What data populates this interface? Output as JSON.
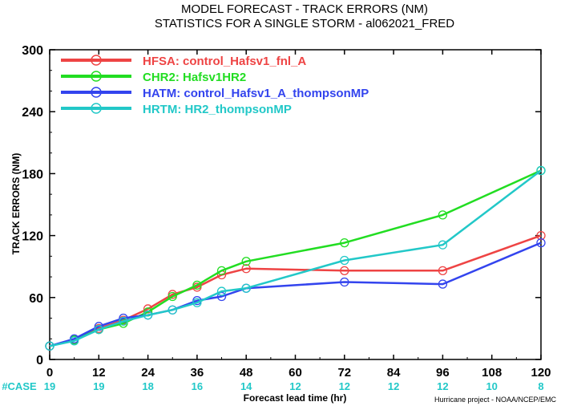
{
  "chart_data": {
    "type": "line",
    "title": "MODEL FORECAST - TRACK ERRORS (NM)",
    "subtitle": "STATISTICS FOR A SINGLE STORM - al062021_FRED",
    "xlabel": "Forecast lead time (hr)",
    "ylabel": "TRACK ERRORS (NM)",
    "xlim": [
      0,
      120
    ],
    "ylim": [
      0,
      300
    ],
    "x_ticks": [
      "0",
      "12",
      "24",
      "36",
      "48",
      "60",
      "72",
      "84",
      "96",
      "108",
      "120"
    ],
    "y_ticks": [
      "0",
      "60",
      "120",
      "180",
      "240",
      "300"
    ],
    "case_label": "#CASE",
    "cases": [
      "19",
      "19",
      "18",
      "16",
      "14",
      "12",
      "12",
      "12",
      "12",
      "10",
      "8"
    ],
    "credit": "Hurricane project - NOAA/NCEP/EMC",
    "grid": false,
    "legend_position": "top-left",
    "series": [
      {
        "name": "HFSA: control_Hafsv1_fnl_A",
        "color": "#ee4444",
        "x": [
          0,
          6,
          12,
          18,
          24,
          30,
          36,
          42,
          48,
          72,
          96,
          120
        ],
        "y": [
          13,
          19,
          30,
          38,
          49,
          63,
          70,
          82,
          88,
          86,
          86,
          120
        ]
      },
      {
        "name": "CHR2: Hafsv1HR2",
        "color": "#22dd22",
        "x": [
          0,
          6,
          12,
          18,
          24,
          30,
          36,
          42,
          48,
          72,
          96,
          120
        ],
        "y": [
          13,
          19,
          29,
          35,
          46,
          61,
          72,
          86,
          95,
          113,
          140,
          183
        ]
      },
      {
        "name": "HATM: control_Hafsv1_A_thompsonMP",
        "color": "#3344ee",
        "x": [
          0,
          6,
          12,
          18,
          24,
          30,
          36,
          42,
          48,
          72,
          96,
          120
        ],
        "y": [
          13,
          20,
          32,
          40,
          43,
          48,
          57,
          61,
          69,
          75,
          73,
          113
        ]
      },
      {
        "name": "HRTM: HR2_thompsonMP",
        "color": "#22c8c8",
        "x": [
          0,
          6,
          12,
          18,
          24,
          30,
          36,
          42,
          48,
          72,
          96,
          120
        ],
        "y": [
          13,
          18,
          29,
          37,
          43,
          48,
          55,
          66,
          69,
          96,
          111,
          183
        ]
      }
    ]
  }
}
